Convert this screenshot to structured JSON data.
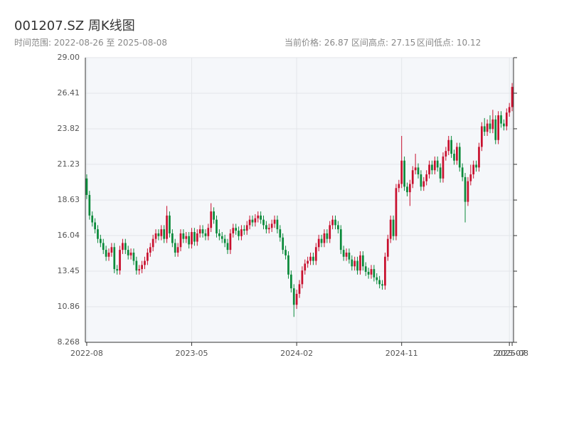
{
  "header": {
    "title": "001207.SZ 周K线图",
    "range": "时间范围: 2022-08-26 至 2025-08-08",
    "current": "当前价格: 26.87",
    "high": "区间高点: 27.15",
    "low": "区间低点: 10.12"
  },
  "chart_data": {
    "type": "candlestick",
    "up_color": "#c8102e",
    "down_color": "#0a8a3a",
    "grid": true,
    "ylim": [
      8.268,
      29.0
    ],
    "yticks": [
      8.268,
      10.86,
      13.45,
      16.04,
      18.63,
      21.23,
      23.82,
      26.41,
      {
        "value": 29.0,
        "label": "29.00"
      }
    ],
    "categories": [
      "2022-08",
      null,
      null,
      null,
      null,
      null,
      null,
      null,
      null,
      null,
      null,
      null,
      null,
      null,
      null,
      null,
      null,
      null,
      null,
      null,
      null,
      null,
      null,
      null,
      null,
      null,
      null,
      null,
      null,
      null,
      null,
      null,
      null,
      null,
      null,
      null,
      null,
      null,
      "2023-05",
      null,
      null,
      null,
      null,
      null,
      null,
      null,
      null,
      null,
      null,
      null,
      null,
      null,
      null,
      null,
      null,
      null,
      null,
      null,
      null,
      null,
      null,
      null,
      null,
      null,
      null,
      null,
      null,
      null,
      null,
      null,
      null,
      null,
      null,
      null,
      null,
      null,
      "2024-02",
      null,
      null,
      null,
      null,
      null,
      null,
      null,
      null,
      null,
      null,
      null,
      null,
      null,
      null,
      null,
      null,
      null,
      null,
      null,
      null,
      null,
      null,
      null,
      null,
      null,
      null,
      null,
      null,
      null,
      null,
      null,
      null,
      null,
      null,
      null,
      null,
      null,
      "2024-11",
      null,
      null,
      null,
      null,
      null,
      null,
      null,
      null,
      null,
      null,
      null,
      null,
      null,
      null,
      null,
      null,
      null,
      null,
      null,
      null,
      null,
      null,
      null,
      null,
      null,
      null,
      null,
      null,
      null,
      null,
      null,
      null,
      null,
      null,
      null,
      null,
      null,
      null,
      "2025-07",
      "2025-08"
    ],
    "open": [
      20.2,
      19.0,
      17.5,
      17.0,
      16.5,
      15.8,
      15.5,
      15.0,
      14.5,
      14.8,
      15.2,
      13.6,
      13.5,
      15.0,
      15.5,
      15.0,
      14.6,
      14.8,
      14.2,
      13.5,
      13.6,
      13.9,
      14.2,
      14.8,
      15.2,
      15.8,
      16.2,
      16.0,
      16.5,
      15.8,
      17.5,
      16.2,
      15.5,
      14.8,
      15.2,
      16.2,
      15.8,
      16.0,
      15.4,
      16.3,
      15.6,
      16.2,
      16.5,
      16.2,
      16.0,
      16.6,
      17.8,
      17.2,
      16.2,
      16.0,
      15.8,
      15.5,
      15.0,
      16.2,
      16.6,
      16.4,
      16.0,
      16.5,
      16.4,
      16.8,
      17.2,
      17.0,
      17.3,
      17.5,
      17.2,
      16.8,
      16.5,
      16.6,
      16.9,
      17.2,
      16.5,
      15.9,
      15.0,
      14.6,
      13.2,
      12.2,
      11.0,
      11.8,
      12.5,
      13.5,
      14.0,
      14.2,
      14.5,
      14.2,
      15.2,
      15.8,
      15.5,
      16.2,
      15.8,
      16.8,
      17.2,
      16.8,
      16.5,
      15.0,
      14.5,
      14.8,
      14.3,
      13.8,
      14.2,
      13.5,
      14.6,
      13.8,
      13.4,
      13.2,
      13.6,
      13.0,
      12.8,
      12.5,
      12.4,
      14.5,
      15.8,
      17.2,
      16.0,
      19.5,
      19.8,
      21.5,
      19.6,
      19.2,
      19.8,
      20.8,
      21.0,
      20.5,
      19.6,
      20.0,
      20.5,
      21.2,
      20.8,
      21.5,
      21.0,
      20.2,
      21.8,
      22.2,
      23.0,
      22.0,
      21.5,
      22.5,
      21.0,
      20.3,
      18.5,
      20.0,
      20.5,
      21.2,
      21.0,
      22.5,
      24.0,
      23.6,
      24.2,
      23.8,
      24.5,
      23.0,
      24.8,
      24.2,
      24.0,
      25.0,
      25.4
    ],
    "high": [
      20.5,
      19.3,
      17.8,
      17.3,
      16.8,
      16.1,
      15.8,
      15.3,
      15.1,
      15.5,
      15.5,
      13.9,
      15.3,
      15.8,
      15.8,
      15.3,
      15.1,
      15.1,
      14.5,
      13.9,
      14.2,
      14.5,
      15.1,
      15.5,
      16.1,
      16.5,
      16.5,
      16.8,
      16.8,
      18.2,
      17.8,
      16.5,
      15.8,
      15.5,
      16.5,
      16.5,
      16.3,
      16.3,
      16.6,
      16.6,
      16.5,
      16.8,
      16.8,
      16.5,
      16.9,
      18.4,
      18.1,
      17.5,
      16.5,
      16.3,
      16.1,
      15.8,
      16.5,
      16.9,
      16.9,
      16.7,
      16.8,
      16.8,
      17.1,
      17.5,
      17.5,
      17.6,
      17.8,
      17.8,
      17.5,
      17.1,
      16.9,
      17.2,
      17.5,
      17.5,
      16.8,
      16.2,
      15.3,
      14.9,
      13.5,
      12.5,
      12.1,
      12.8,
      13.8,
      14.3,
      14.5,
      14.8,
      14.8,
      15.5,
      16.1,
      16.1,
      16.5,
      16.5,
      17.1,
      17.5,
      17.5,
      17.1,
      16.8,
      15.3,
      15.1,
      15.1,
      14.6,
      14.5,
      14.5,
      14.9,
      14.9,
      14.1,
      13.7,
      13.9,
      13.9,
      13.3,
      13.1,
      12.8,
      14.8,
      16.1,
      17.5,
      17.5,
      19.8,
      20.1,
      23.3,
      21.8,
      19.9,
      20.1,
      21.1,
      22.0,
      21.3,
      20.8,
      20.3,
      20.8,
      21.5,
      21.5,
      21.8,
      21.8,
      21.3,
      22.1,
      22.5,
      23.3,
      23.3,
      22.3,
      22.8,
      22.8,
      21.3,
      20.6,
      20.3,
      21.2,
      21.5,
      21.5,
      22.8,
      24.3,
      24.6,
      24.5,
      24.8,
      25.2,
      24.8,
      25.1,
      25.1,
      24.5,
      25.3,
      25.7,
      27.15
    ],
    "low": [
      18.7,
      17.2,
      16.7,
      16.2,
      15.5,
      15.2,
      14.7,
      14.2,
      14.2,
      14.5,
      13.3,
      13.2,
      13.2,
      14.7,
      14.7,
      14.3,
      14.3,
      13.9,
      13.2,
      13.2,
      13.3,
      13.6,
      13.9,
      14.5,
      14.9,
      15.5,
      15.7,
      15.7,
      15.5,
      15.5,
      15.9,
      15.2,
      14.5,
      14.5,
      14.9,
      15.5,
      15.5,
      15.1,
      15.1,
      15.3,
      15.3,
      15.9,
      15.9,
      15.7,
      15.7,
      16.3,
      16.9,
      15.9,
      15.7,
      15.5,
      15.2,
      14.7,
      14.7,
      15.9,
      16.1,
      15.7,
      15.7,
      16.1,
      16.1,
      16.5,
      16.7,
      16.7,
      17.0,
      16.9,
      16.5,
      16.2,
      16.2,
      16.3,
      16.6,
      16.2,
      15.6,
      14.7,
      14.3,
      12.9,
      11.9,
      10.12,
      10.7,
      11.5,
      12.2,
      13.2,
      13.7,
      13.9,
      13.9,
      13.9,
      14.9,
      15.2,
      15.2,
      15.5,
      15.5,
      16.5,
      16.5,
      16.2,
      14.7,
      14.2,
      14.2,
      14.0,
      13.5,
      13.5,
      13.2,
      13.2,
      13.5,
      13.1,
      12.9,
      12.9,
      12.7,
      12.5,
      12.2,
      12.1,
      12.1,
      14.2,
      15.5,
      15.7,
      15.7,
      19.2,
      19.5,
      19.3,
      18.9,
      18.2,
      19.5,
      20.5,
      20.2,
      19.3,
      19.3,
      19.7,
      20.2,
      20.5,
      20.5,
      20.7,
      19.9,
      19.9,
      21.5,
      21.9,
      21.7,
      21.2,
      21.2,
      20.7,
      20.0,
      17.0,
      18.2,
      19.7,
      20.2,
      20.7,
      20.7,
      22.2,
      23.3,
      23.3,
      23.5,
      23.5,
      22.7,
      22.7,
      23.9,
      23.7,
      23.7,
      24.7,
      25.1
    ],
    "close": [
      19.0,
      17.5,
      17.0,
      16.5,
      15.8,
      15.5,
      15.0,
      14.5,
      14.8,
      15.2,
      13.6,
      13.5,
      15.0,
      15.5,
      15.0,
      14.6,
      14.8,
      14.2,
      13.5,
      13.6,
      13.9,
      14.2,
      14.8,
      15.2,
      15.8,
      16.2,
      16.0,
      16.5,
      15.8,
      17.5,
      16.2,
      15.5,
      14.8,
      15.2,
      16.2,
      15.8,
      16.0,
      15.4,
      16.3,
      15.6,
      16.2,
      16.5,
      16.2,
      16.0,
      16.6,
      17.8,
      17.2,
      16.2,
      16.0,
      15.8,
      15.5,
      15.0,
      16.2,
      16.6,
      16.4,
      16.0,
      16.5,
      16.4,
      16.8,
      17.2,
      17.0,
      17.3,
      17.5,
      17.2,
      16.8,
      16.5,
      16.6,
      16.9,
      17.2,
      16.5,
      15.9,
      15.0,
      14.6,
      13.2,
      12.2,
      11.0,
      11.8,
      12.5,
      13.5,
      14.0,
      14.2,
      14.5,
      14.2,
      15.2,
      15.8,
      15.5,
      16.2,
      15.8,
      16.8,
      17.2,
      16.8,
      16.5,
      15.0,
      14.5,
      14.8,
      14.3,
      13.8,
      14.2,
      13.5,
      14.6,
      13.8,
      13.4,
      13.2,
      13.6,
      13.0,
      12.8,
      12.5,
      12.4,
      14.5,
      15.8,
      17.2,
      16.0,
      19.5,
      19.8,
      21.5,
      19.6,
      19.2,
      19.8,
      20.8,
      21.0,
      20.5,
      19.6,
      20.0,
      20.5,
      21.2,
      20.8,
      21.5,
      21.0,
      20.2,
      21.8,
      22.2,
      23.0,
      22.0,
      21.5,
      22.5,
      21.0,
      20.3,
      18.5,
      20.0,
      20.5,
      21.2,
      21.0,
      22.5,
      24.0,
      23.6,
      24.2,
      23.8,
      24.5,
      23.0,
      24.8,
      24.2,
      24.0,
      25.0,
      25.4,
      26.87
    ]
  }
}
